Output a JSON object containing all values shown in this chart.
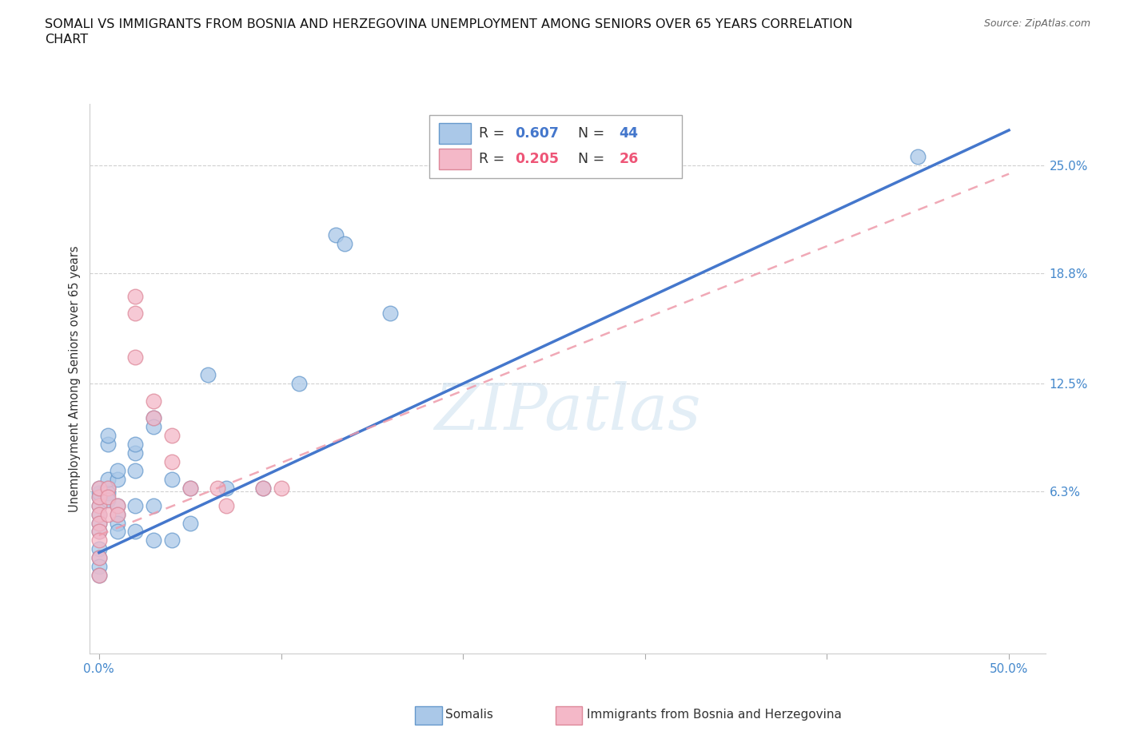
{
  "title_line1": "SOMALI VS IMMIGRANTS FROM BOSNIA AND HERZEGOVINA UNEMPLOYMENT AMONG SENIORS OVER 65 YEARS CORRELATION",
  "title_line2": "CHART",
  "source": "Source: ZipAtlas.com",
  "ylabel": "Unemployment Among Seniors over 65 years",
  "xlim": [
    -0.005,
    0.52
  ],
  "ylim": [
    -0.03,
    0.285
  ],
  "xtick_positions": [
    0.0,
    0.1,
    0.2,
    0.3,
    0.4,
    0.5
  ],
  "xticklabels": [
    "0.0%",
    "",
    "",
    "",
    "",
    "50.0%"
  ],
  "ytick_positions": [
    0.063,
    0.125,
    0.188,
    0.25
  ],
  "ytick_labels": [
    "6.3%",
    "12.5%",
    "18.8%",
    "25.0%"
  ],
  "background_color": "#ffffff",
  "grid_color": "#d0d0d0",
  "watermark_text": "ZIPatlas",
  "somali_color": "#aac8e8",
  "somali_edge": "#6699cc",
  "bosnia_color": "#f4b8c8",
  "bosnia_edge": "#dd8899",
  "line_blue": "#4477cc",
  "line_pink": "#ee9aaa",
  "somali_R": "0.607",
  "somali_N": "44",
  "bosnia_R": "0.205",
  "bosnia_N": "26",
  "somali_scatter_x": [
    0.0,
    0.0,
    0.0,
    0.0,
    0.0,
    0.0,
    0.0,
    0.0,
    0.0,
    0.0,
    0.0,
    0.005,
    0.005,
    0.005,
    0.005,
    0.005,
    0.005,
    0.01,
    0.01,
    0.01,
    0.01,
    0.01,
    0.01,
    0.02,
    0.02,
    0.02,
    0.02,
    0.02,
    0.03,
    0.03,
    0.03,
    0.03,
    0.04,
    0.04,
    0.05,
    0.05,
    0.06,
    0.07,
    0.09,
    0.11,
    0.13,
    0.135,
    0.16,
    0.45
  ],
  "somali_scatter_y": [
    0.055,
    0.06,
    0.062,
    0.065,
    0.05,
    0.045,
    0.04,
    0.03,
    0.025,
    0.02,
    0.015,
    0.065,
    0.062,
    0.058,
    0.09,
    0.095,
    0.07,
    0.07,
    0.075,
    0.055,
    0.05,
    0.045,
    0.04,
    0.085,
    0.09,
    0.075,
    0.055,
    0.04,
    0.105,
    0.1,
    0.055,
    0.035,
    0.07,
    0.035,
    0.065,
    0.045,
    0.13,
    0.065,
    0.065,
    0.125,
    0.21,
    0.205,
    0.165,
    0.255
  ],
  "bosnia_scatter_x": [
    0.0,
    0.0,
    0.0,
    0.0,
    0.0,
    0.0,
    0.0,
    0.0,
    0.0,
    0.005,
    0.005,
    0.005,
    0.01,
    0.01,
    0.02,
    0.02,
    0.02,
    0.03,
    0.03,
    0.04,
    0.04,
    0.05,
    0.065,
    0.07,
    0.09,
    0.1
  ],
  "bosnia_scatter_y": [
    0.055,
    0.06,
    0.065,
    0.05,
    0.045,
    0.04,
    0.035,
    0.025,
    0.015,
    0.065,
    0.06,
    0.05,
    0.055,
    0.05,
    0.175,
    0.165,
    0.14,
    0.115,
    0.105,
    0.095,
    0.08,
    0.065,
    0.065,
    0.055,
    0.065,
    0.065
  ],
  "somali_line_x": [
    0.0,
    0.5
  ],
  "somali_line_y": [
    0.028,
    0.27
  ],
  "bosnia_line_x": [
    0.0,
    0.5
  ],
  "bosnia_line_y": [
    0.038,
    0.245
  ]
}
